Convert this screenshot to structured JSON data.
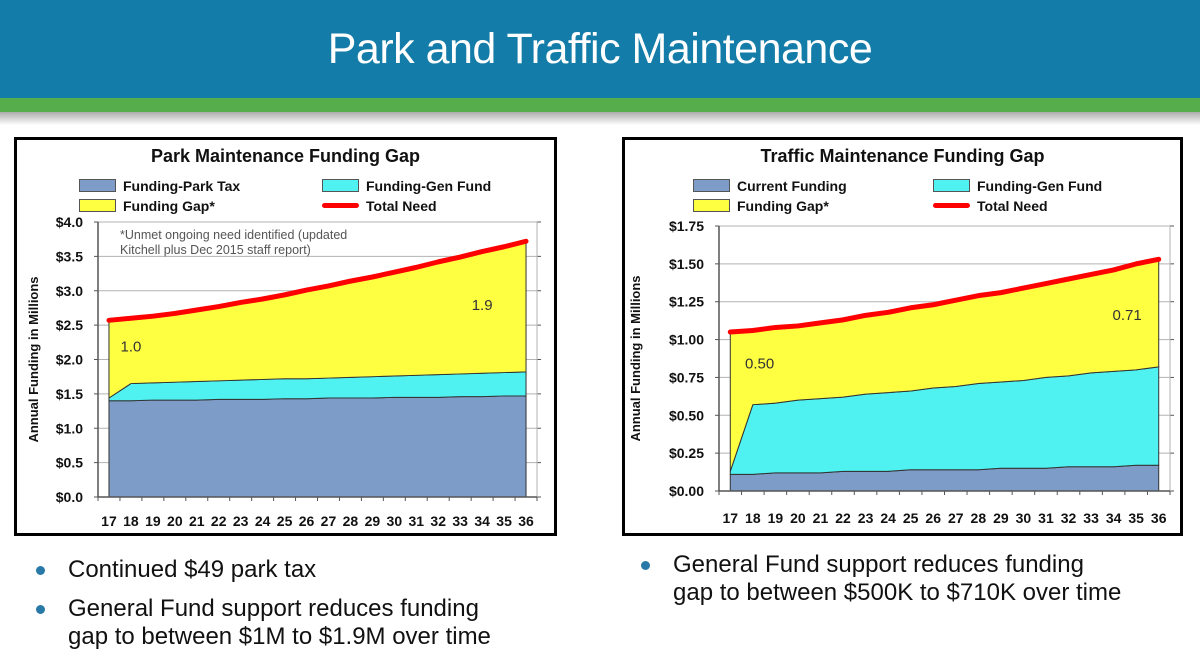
{
  "header": {
    "title": "Park and Traffic Maintenance"
  },
  "colors": {
    "header_bg": "#147CA8",
    "accent_green": "#56AD4C",
    "bullet_dot": "#2878A8",
    "total_need_red": "#FF0000",
    "funding_blue": "#7D9CC8",
    "gen_fund_cyan": "#4FF1F1",
    "gap_yellow": "#FFFF42"
  },
  "chart_data": [
    {
      "type": "area",
      "title": "Park Maintenance Funding Gap",
      "ylabel": "Annual Funding in Millions",
      "note": "*Unmet ongoing need identified (updated Kitchell plus Dec 2015 staff report)",
      "x": [
        17,
        18,
        19,
        20,
        21,
        22,
        23,
        24,
        25,
        26,
        27,
        28,
        29,
        30,
        31,
        32,
        33,
        34,
        35,
        36
      ],
      "ylim": [
        0,
        4
      ],
      "ytick_labels": [
        "$0.0",
        "$0.5",
        "$1.0",
        "$1.5",
        "$2.0",
        "$2.5",
        "$3.0",
        "$3.5",
        "$4.0"
      ],
      "legend_position": "top",
      "grid": "horizontal",
      "series": [
        {
          "name": "Funding-Park Tax",
          "type": "area",
          "color": "#7D9CC8",
          "top": [
            1.4,
            1.4,
            1.41,
            1.41,
            1.41,
            1.42,
            1.42,
            1.42,
            1.43,
            1.43,
            1.44,
            1.44,
            1.44,
            1.45,
            1.45,
            1.45,
            1.46,
            1.46,
            1.47,
            1.47
          ]
        },
        {
          "name": "Funding-Gen Fund",
          "type": "area",
          "color": "#4FF1F1",
          "top": [
            1.44,
            1.65,
            1.66,
            1.67,
            1.68,
            1.69,
            1.7,
            1.71,
            1.72,
            1.72,
            1.73,
            1.74,
            1.75,
            1.76,
            1.77,
            1.78,
            1.79,
            1.8,
            1.81,
            1.82
          ]
        },
        {
          "name": "Funding Gap*",
          "type": "area",
          "color": "#FFFF42",
          "top": [
            2.57,
            2.6,
            2.63,
            2.67,
            2.72,
            2.77,
            2.83,
            2.88,
            2.94,
            3.01,
            3.07,
            3.14,
            3.2,
            3.27,
            3.34,
            3.42,
            3.49,
            3.57,
            3.64,
            3.72
          ]
        },
        {
          "name": "Total Need",
          "type": "line",
          "color": "#FF0000",
          "top": [
            2.57,
            2.6,
            2.63,
            2.67,
            2.72,
            2.77,
            2.83,
            2.88,
            2.94,
            3.01,
            3.07,
            3.14,
            3.2,
            3.27,
            3.34,
            3.42,
            3.49,
            3.57,
            3.64,
            3.72
          ]
        }
      ],
      "annotations": [
        {
          "text": "1.0",
          "x": 18,
          "y": 2.12
        },
        {
          "text": "1.9",
          "x": 34,
          "y": 2.72
        }
      ]
    },
    {
      "type": "area",
      "title": "Traffic Maintenance Funding Gap",
      "ylabel": "Annual Funding in Millions",
      "note": "",
      "x": [
        17,
        18,
        19,
        20,
        21,
        22,
        23,
        24,
        25,
        26,
        27,
        28,
        29,
        30,
        31,
        32,
        33,
        34,
        35,
        36
      ],
      "ylim": [
        0,
        1.75
      ],
      "ytick_labels": [
        "$0.00",
        "$0.25",
        "$0.50",
        "$0.75",
        "$1.00",
        "$1.25",
        "$1.50",
        "$1.75"
      ],
      "legend_position": "top",
      "grid": "horizontal",
      "series": [
        {
          "name": "Current Funding",
          "type": "area",
          "color": "#7D9CC8",
          "top": [
            0.11,
            0.11,
            0.12,
            0.12,
            0.12,
            0.13,
            0.13,
            0.13,
            0.14,
            0.14,
            0.14,
            0.14,
            0.15,
            0.15,
            0.15,
            0.16,
            0.16,
            0.16,
            0.17,
            0.17
          ]
        },
        {
          "name": "Funding-Gen Fund",
          "type": "area",
          "color": "#4FF1F1",
          "top": [
            0.13,
            0.57,
            0.58,
            0.6,
            0.61,
            0.62,
            0.64,
            0.65,
            0.66,
            0.68,
            0.69,
            0.71,
            0.72,
            0.73,
            0.75,
            0.76,
            0.78,
            0.79,
            0.8,
            0.82
          ]
        },
        {
          "name": "Funding Gap*",
          "type": "area",
          "color": "#FFFF42",
          "top": [
            1.05,
            1.06,
            1.08,
            1.09,
            1.11,
            1.13,
            1.16,
            1.18,
            1.21,
            1.23,
            1.26,
            1.29,
            1.31,
            1.34,
            1.37,
            1.4,
            1.43,
            1.46,
            1.5,
            1.53
          ]
        },
        {
          "name": "Total Need",
          "type": "line",
          "color": "#FF0000",
          "top": [
            1.05,
            1.06,
            1.08,
            1.09,
            1.11,
            1.13,
            1.16,
            1.18,
            1.21,
            1.23,
            1.26,
            1.29,
            1.31,
            1.34,
            1.37,
            1.4,
            1.43,
            1.46,
            1.5,
            1.53
          ]
        }
      ],
      "annotations": [
        {
          "text": "0.50",
          "x": 18.3,
          "y": 0.81
        },
        {
          "text": "0.71",
          "x": 34.6,
          "y": 1.13
        }
      ]
    }
  ],
  "bullets": {
    "left": [
      {
        "lines": [
          "Continued $49 park tax"
        ]
      },
      {
        "lines": [
          "General Fund support reduces funding",
          "gap to between $1M to $1.9M over time"
        ]
      }
    ],
    "right": [
      {
        "lines": [
          "General Fund support reduces funding",
          "gap to between $500K to $710K over time"
        ]
      }
    ]
  }
}
